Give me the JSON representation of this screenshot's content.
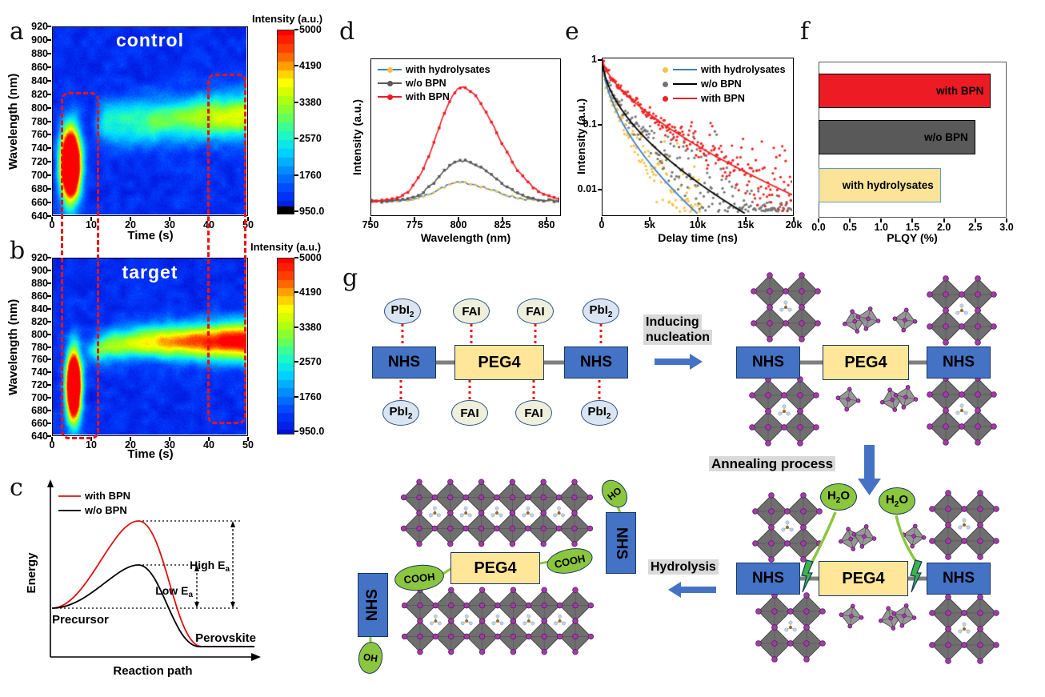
{
  "panels": {
    "a": {
      "letter": "a"
    },
    "b": {
      "letter": "b"
    },
    "c": {
      "letter": "c"
    },
    "d": {
      "letter": "d"
    },
    "e": {
      "letter": "e"
    },
    "f": {
      "letter": "f"
    },
    "g": {
      "letter": "g"
    }
  },
  "chart_data": [
    {
      "id": "a",
      "type": "heatmap",
      "title": "control",
      "xlabel": "Time (s)",
      "ylabel": "Wavelength (nm)",
      "x_tick_labels": [
        "0",
        "10",
        "20",
        "30",
        "40",
        "50"
      ],
      "y_tick_labels": [
        "920",
        "900",
        "880",
        "860",
        "840",
        "820",
        "800",
        "780",
        "760",
        "740",
        "720",
        "700",
        "680",
        "660",
        "640"
      ],
      "x_range": [
        0,
        50
      ],
      "y_range": [
        636,
        922
      ],
      "colorbar": {
        "title": "Intensity (a.u.)",
        "tick_labels": [
          "5000",
          "4190",
          "3380",
          "2570",
          "1760",
          "950.0"
        ],
        "range": [
          950,
          5000
        ],
        "has_black_end": true
      },
      "base": 0.08,
      "seed": 42,
      "blob": {
        "t": 4.5,
        "st": 1.7,
        "wl": 713,
        "swl": 36,
        "amp": 2.0,
        "desc": "initial nucleation PL burst at ~713 nm, 2-8 s"
      },
      "band": {
        "t_on": 9.5,
        "ramp": 4,
        "amp0": 0.3,
        "amp1": 0.62,
        "wl_fn": "linear",
        "wl0": 774,
        "wl1": 788,
        "swl": 24,
        "desc": "growing emission band 775-790 nm from 10-50 s"
      },
      "roi_boxes_time_s": [
        [
          2,
          10
        ],
        [
          40,
          48
        ]
      ]
    },
    {
      "id": "b",
      "type": "heatmap",
      "title": "target",
      "xlabel": "Time (s)",
      "ylabel": "Wavelength (nm)",
      "x_tick_labels": [
        "0",
        "10",
        "20",
        "30",
        "40",
        "50"
      ],
      "y_tick_labels": [
        "920",
        "900",
        "880",
        "860",
        "840",
        "820",
        "800",
        "780",
        "760",
        "740",
        "720",
        "700",
        "680",
        "660",
        "640"
      ],
      "x_range": [
        0,
        50
      ],
      "y_range": [
        636,
        922
      ],
      "colorbar": {
        "title": "Intensity (a.u.)",
        "tick_labels": [
          "5000",
          "4190",
          "3380",
          "2570",
          "1760",
          "950.0"
        ],
        "range": [
          950,
          5000
        ],
        "has_black_end": false
      },
      "base": 0.08,
      "seed": 77,
      "blob": {
        "t": 5.3,
        "st": 1.3,
        "wl": 716,
        "swl": 38,
        "amp": 1.9,
        "desc": "initial nucleation PL burst at ~716 nm, 4-7 s"
      },
      "band": {
        "t_on": 7,
        "ramp": 5,
        "amp0": 0.45,
        "amp1": 1.0,
        "wl_fn": "exp",
        "wl_base": 788,
        "wl_drop": 26,
        "wl_tau": 6,
        "swl0": 16,
        "swl1": 22,
        "desc": "emission band rising to saturated red ~788 nm by 50 s"
      },
      "roi_boxes_time_s": [
        [
          2,
          10
        ],
        [
          40,
          48
        ]
      ]
    },
    {
      "id": "c",
      "type": "line-schematic",
      "xlabel": "Reaction path",
      "ylabel": "Energy",
      "legend": [
        {
          "label": "with BPN",
          "color": "#e01010"
        },
        {
          "label": "w/o BPN",
          "color": "#000000"
        }
      ],
      "annotations": {
        "high_text": "High E",
        "high_sub": "a",
        "low_text": "Low E",
        "low_sub": "a",
        "reactant": "Precursor",
        "product": "Perovskite"
      },
      "curves": [
        {
          "name": "with BPN",
          "color": "#e01010",
          "barrier": "high"
        },
        {
          "name": "w/o BPN",
          "color": "#000000",
          "barrier": "low"
        }
      ]
    },
    {
      "id": "d",
      "type": "line",
      "xlabel": "Wavelength (nm)",
      "ylabel": "Intensity (a.u.)",
      "x_tick_labels": [
        "750",
        "775",
        "800",
        "825",
        "850"
      ],
      "x_range": [
        750,
        858
      ],
      "baseline": 0.085,
      "series": [
        {
          "name": "with hydrolysates",
          "line_color": "#3a7ec6",
          "marker_color": "#f6c244",
          "marker": "circle",
          "peak_nm": 801,
          "amplitude": 0.12,
          "sigma_left": 13,
          "sigma_right": 18
        },
        {
          "name": "w/o BPN",
          "line_color": "#595959",
          "marker_color": "#595959",
          "marker": "sq",
          "peak_nm": 802,
          "amplitude": 0.26,
          "sigma_left": 13,
          "sigma_right": 18
        },
        {
          "name": "with BPN",
          "line_color": "#ed1c24",
          "marker_color": "#ed1c24",
          "marker": "sq",
          "peak_nm": 802,
          "amplitude": 0.73,
          "sigma_left": 14,
          "sigma_right": 20
        }
      ]
    },
    {
      "id": "e",
      "type": "scatter-decay",
      "xlabel": "Delay time (ns)",
      "ylabel": "Intensity (a.u.)",
      "x_tick_labels": [
        "0",
        "5k",
        "10k",
        "15k",
        "20k"
      ],
      "y_tick_labels": [
        "1",
        "0.1",
        "0.01"
      ],
      "x_range": [
        0,
        20000
      ],
      "y_range": [
        0.004,
        1
      ],
      "series": [
        {
          "name": "with hydrolysates",
          "marker_color": "#f6c244",
          "fit_color": "#3a7ec6",
          "tau_ns": 508,
          "beta": 0.57,
          "t_max": 10500,
          "fit_t_max": 10000
        },
        {
          "name": "w/o BPN",
          "marker_color": "#757575",
          "fit_color": "#000000",
          "tau_ns": 724,
          "beta": 0.56,
          "t_max": 20000,
          "fit_t_max": 20000
        },
        {
          "name": "with BPN",
          "marker_color": "#ee2222",
          "fit_color": "#ee2222",
          "tau_ns": 1790,
          "beta": 0.65,
          "t_max": 20000,
          "fit_t_max": 20000
        }
      ]
    },
    {
      "id": "f",
      "type": "bar-horizontal",
      "xlabel": "PLQY (%)",
      "x_tick_labels": [
        "0.0",
        "0.5",
        "1.0",
        "1.5",
        "2.0",
        "2.5",
        "3.0"
      ],
      "x_range": [
        0,
        3.0
      ],
      "bars": [
        {
          "label": "with BPN",
          "value": 2.75,
          "fill": "#ed1c24",
          "border": "#000000"
        },
        {
          "label": "w/o BPN",
          "value": 2.5,
          "fill": "#595959",
          "border": "#000000"
        },
        {
          "label": "with hydrolysates",
          "value": 1.95,
          "fill": "#fbe398",
          "border": "#5b9bd5"
        }
      ]
    }
  ],
  "schematic": {
    "nhs": "NHS",
    "peg4": "PEG4",
    "pbi2_text": "PbI",
    "pbi2_sub": "2",
    "fai": "FAI",
    "h2o_pre": "H",
    "h2o_sub": "2",
    "h2o_post": "O",
    "cooh": "COOH",
    "oh": "OH",
    "ho": "HO",
    "step1_line1": "Inducing",
    "step1_line2": "nucleation",
    "step2": "Annealing process",
    "step3": "Hydrolysis",
    "ellipse_rows": {
      "top": [
        "pbi2",
        "fai",
        "fai",
        "pbi2"
      ],
      "bottom": [
        "pbi2",
        "fai",
        "fai",
        "pbi2"
      ]
    }
  }
}
